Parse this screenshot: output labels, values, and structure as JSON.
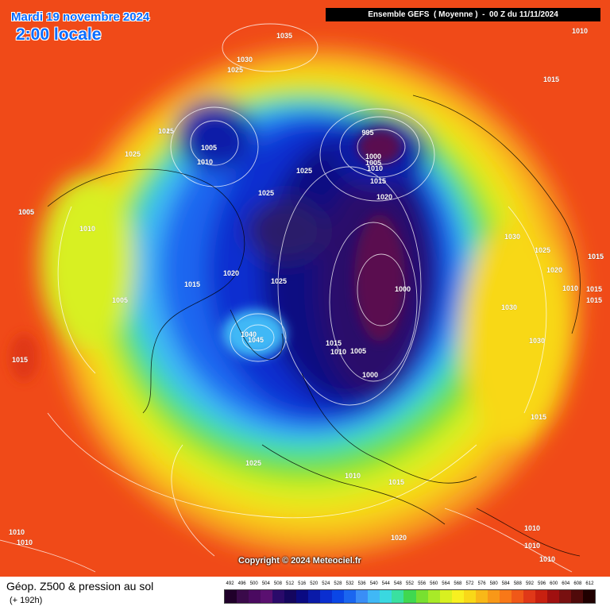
{
  "header": {
    "date": "Mardi 19 novembre 2024",
    "time": "2:00 locale",
    "run": "Ensemble GEFS  ( Moyenne )  -  00 Z du 11/11/2024"
  },
  "footer": {
    "product": "Géop. Z500 & pression au sol",
    "lead": "(+ 192h)",
    "copyright": "Copyright © 2024 Meteociel.fr"
  },
  "legend": {
    "values": [
      "492",
      "496",
      "500",
      "504",
      "508",
      "512",
      "516",
      "520",
      "524",
      "528",
      "532",
      "536",
      "540",
      "544",
      "548",
      "552",
      "556",
      "560",
      "564",
      "568",
      "572",
      "576",
      "580",
      "584",
      "588",
      "592",
      "596",
      "600",
      "604",
      "608",
      "612"
    ],
    "colors": [
      "#20002a",
      "#3a0a4a",
      "#4a0a60",
      "#5a1070",
      "#2a0a6a",
      "#14065e",
      "#0a0a82",
      "#0a1aa8",
      "#0a2ed0",
      "#0a46e6",
      "#1a66f0",
      "#3a8ef6",
      "#40b8f6",
      "#3ad8e0",
      "#3ae0a0",
      "#40d850",
      "#78e030",
      "#a8ea28",
      "#d8f020",
      "#f8f020",
      "#f8d818",
      "#f8b818",
      "#f89818",
      "#f87818",
      "#f05818",
      "#e03818",
      "#c82010",
      "#a01010",
      "#781010",
      "#500a0a",
      "#200000"
    ]
  },
  "isobar_labels": [
    {
      "text": "1035"
    },
    {
      "text": "1030"
    },
    {
      "text": "1025"
    },
    {
      "text": "1010"
    },
    {
      "text": "1015"
    },
    {
      "text": "1005"
    },
    {
      "text": "1010"
    },
    {
      "text": "1025"
    },
    {
      "text": "1025"
    },
    {
      "text": "995"
    },
    {
      "text": "1000"
    },
    {
      "text": "1005"
    },
    {
      "text": "1010"
    },
    {
      "text": "1015"
    },
    {
      "text": "1020"
    },
    {
      "text": "1025"
    },
    {
      "text": "1025"
    },
    {
      "text": "1005"
    },
    {
      "text": "1010"
    },
    {
      "text": "1015"
    },
    {
      "text": "1020"
    },
    {
      "text": "1025"
    },
    {
      "text": "1005"
    },
    {
      "text": "1040"
    },
    {
      "text": "1045"
    },
    {
      "text": "1015"
    },
    {
      "text": "1010"
    },
    {
      "text": "1005"
    },
    {
      "text": "1000"
    },
    {
      "text": "1000"
    },
    {
      "text": "1030"
    },
    {
      "text": "1025"
    },
    {
      "text": "1015"
    },
    {
      "text": "1020"
    },
    {
      "text": "1010"
    },
    {
      "text": "1015"
    },
    {
      "text": "1015"
    },
    {
      "text": "1030"
    },
    {
      "text": "1030"
    },
    {
      "text": "1015"
    },
    {
      "text": "1025"
    },
    {
      "text": "1010"
    },
    {
      "text": "1015"
    },
    {
      "text": "1020"
    },
    {
      "text": "1010"
    },
    {
      "text": "1010"
    },
    {
      "text": "1010"
    },
    {
      "text": "1010"
    },
    {
      "text": "1010"
    },
    {
      "text": "1015"
    },
    {
      "text": "1015"
    },
    {
      "text": "1015"
    },
    {
      "text": "1005"
    }
  ]
}
